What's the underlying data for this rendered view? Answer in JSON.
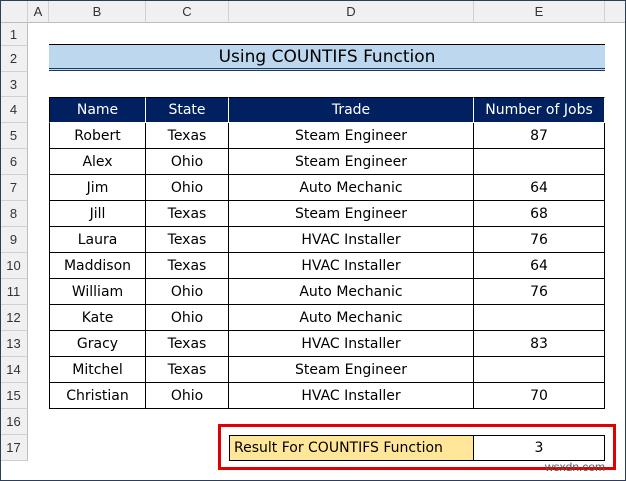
{
  "columns": [
    "A",
    "B",
    "C",
    "D",
    "E"
  ],
  "rows": [
    "1",
    "2",
    "3",
    "4",
    "5",
    "6",
    "7",
    "8",
    "9",
    "10",
    "11",
    "12",
    "13",
    "14",
    "15",
    "16",
    "17"
  ],
  "title": "Using COUNTIFS Function",
  "table": {
    "headers": [
      "Name",
      "State",
      "Trade",
      "Number of Jobs"
    ],
    "rows": [
      [
        "Robert",
        "Texas",
        "Steam Engineer",
        "87"
      ],
      [
        "Alex",
        "Ohio",
        "Steam Engineer",
        ""
      ],
      [
        "Jim",
        "Ohio",
        "Auto Mechanic",
        "64"
      ],
      [
        "Jill",
        "Texas",
        "Steam Engineer",
        "68"
      ],
      [
        "Laura",
        "Texas",
        "HVAC Installer",
        "76"
      ],
      [
        "Maddison",
        "Texas",
        "HVAC Installer",
        "64"
      ],
      [
        "William",
        "Ohio",
        "Auto Mechanic",
        "76"
      ],
      [
        "Kate",
        "Ohio",
        "Auto Mechanic",
        ""
      ],
      [
        "Gracy",
        "Texas",
        "HVAC Installer",
        "83"
      ],
      [
        "Mitchel",
        "Texas",
        "Steam Engineer",
        ""
      ],
      [
        "Christian",
        "Ohio",
        "HVAC Installer",
        "70"
      ]
    ]
  },
  "result": {
    "label": "Result For COUNTIFS Function",
    "value": "3"
  },
  "watermark": "wsxdn.com",
  "colors": {
    "header": "#002060",
    "title": "#bdd7ee",
    "result_label": "#ffe699",
    "highlight": "#e00000"
  }
}
